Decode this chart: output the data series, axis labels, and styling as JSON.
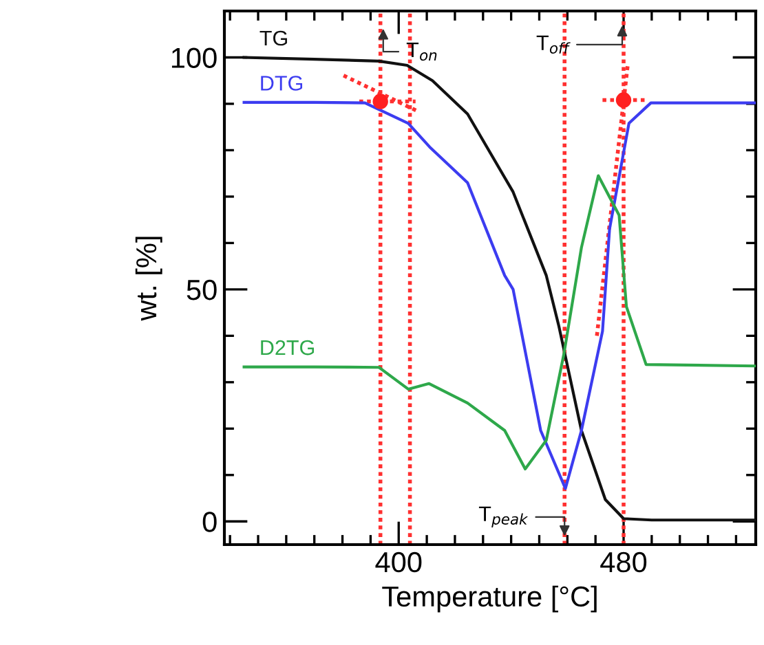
{
  "chart_data": {
    "type": "line",
    "xlabel": "Temperature [°C]",
    "ylabel": "wt. [%]",
    "xlim": [
      338,
      527
    ],
    "ylim": [
      -5,
      110
    ],
    "xticks": [
      {
        "value": 340,
        "label": null
      },
      {
        "value": 350,
        "label": null
      },
      {
        "value": 360,
        "label": null
      },
      {
        "value": 370,
        "label": null
      },
      {
        "value": 380,
        "label": null
      },
      {
        "value": 390,
        "label": null
      },
      400,
      {
        "value": 410,
        "label": null
      },
      {
        "value": 420,
        "label": null
      },
      {
        "value": 430,
        "label": null
      },
      {
        "value": 440,
        "label": null
      },
      {
        "value": 450,
        "label": null
      },
      {
        "value": 460,
        "label": null
      },
      {
        "value": 470,
        "label": null
      },
      480,
      {
        "value": 490,
        "label": null
      },
      {
        "value": 500,
        "label": null
      },
      {
        "value": 510,
        "label": null
      },
      {
        "value": 520,
        "label": null
      }
    ],
    "yticks": [
      0,
      {
        "value": 10,
        "label": null
      },
      {
        "value": 20,
        "label": null
      },
      {
        "value": 30,
        "label": null
      },
      {
        "value": 40,
        "label": null
      },
      50,
      {
        "value": 60,
        "label": null
      },
      {
        "value": 70,
        "label": null
      },
      {
        "value": 80,
        "label": null
      },
      {
        "value": 90,
        "label": null
      },
      100
    ],
    "grid": false,
    "legend": false,
    "line_style": "solid",
    "marker": "none",
    "series": [
      {
        "name": "TG",
        "color": "#111111",
        "x": [
          345,
          370,
          393,
          403,
          412,
          424.5,
          440.7,
          452.5,
          457,
          465,
          473.5,
          480,
          490,
          527
        ],
        "values": [
          100,
          99.6,
          99.2,
          98.3,
          95,
          87.8,
          71,
          53,
          42,
          19.6,
          4.7,
          0.6,
          0.3,
          0.3
        ]
      },
      {
        "name": "DTG",
        "color": "#3c3cf0",
        "x": [
          345,
          370,
          388,
          403.4,
          411,
          424.5,
          437.7,
          440.7,
          450.5,
          459.3,
          465,
          472.5,
          475,
          481.9,
          489.7,
          527
        ],
        "values": [
          90.3,
          90.3,
          90.2,
          85.8,
          80.7,
          73,
          53,
          50,
          19.6,
          7.1,
          19.6,
          41,
          63,
          85.8,
          90.2,
          90.2
        ]
      },
      {
        "name": "D2TG",
        "color": "#2ea84a",
        "x": [
          345,
          370,
          393,
          395,
          403.4,
          410.8,
          424.5,
          437.7,
          445,
          452.5,
          458.8,
          465,
          471,
          478.4,
          481,
          488,
          527
        ],
        "values": [
          33.3,
          33.3,
          33.2,
          32.3,
          28.5,
          29.7,
          25.5,
          19.6,
          11.3,
          17.5,
          36.2,
          59,
          74.5,
          66,
          46.3,
          33.8,
          33.5
        ]
      },
      {
        "type": "line",
        "line_style": "dotted",
        "color": "#ff3030",
        "x": [
          380.4,
          406.4
        ],
        "values": [
          96.1,
          88.5
        ]
      },
      {
        "type": "line",
        "line_style": "dotted",
        "color": "#ff3030",
        "x": [
          386,
          406
        ],
        "values": [
          90.5,
          90.5
        ]
      },
      {
        "type": "line",
        "line_style": "dotted",
        "color": "#ff3030",
        "x": [
          472.5,
          488
        ],
        "values": [
          90.8,
          90.8
        ]
      },
      {
        "type": "line",
        "line_style": "dotted",
        "color": "#ff3030",
        "x": [
          470.5,
          481.5
        ],
        "values": [
          40,
          98.5
        ]
      },
      {
        "type": "scatter",
        "marker": "circle",
        "color": "#ff2020",
        "x": [
          393.5,
          480
        ],
        "values": [
          90.5,
          90.8
        ]
      }
    ],
    "ref_lines": [
      {
        "axis": "x",
        "value": 393.5,
        "color": "#ff3030",
        "line_style": "dotted"
      },
      {
        "axis": "x",
        "value": 404,
        "color": "#ff3030",
        "line_style": "dotted"
      },
      {
        "axis": "x",
        "value": 459,
        "color": "#ff3030",
        "line_style": "dotted"
      },
      {
        "axis": "x",
        "value": 480,
        "color": "#ff3030",
        "line_style": "dotted"
      }
    ],
    "annotations": [
      {
        "text": "T$_{on}$",
        "x": 394.5,
        "y": 107
      },
      {
        "text": "T$_{off}$",
        "x": 479.5,
        "y": 107.7
      },
      {
        "text": "T$_{peak}$",
        "x": 459,
        "y": -4
      }
    ]
  }
}
